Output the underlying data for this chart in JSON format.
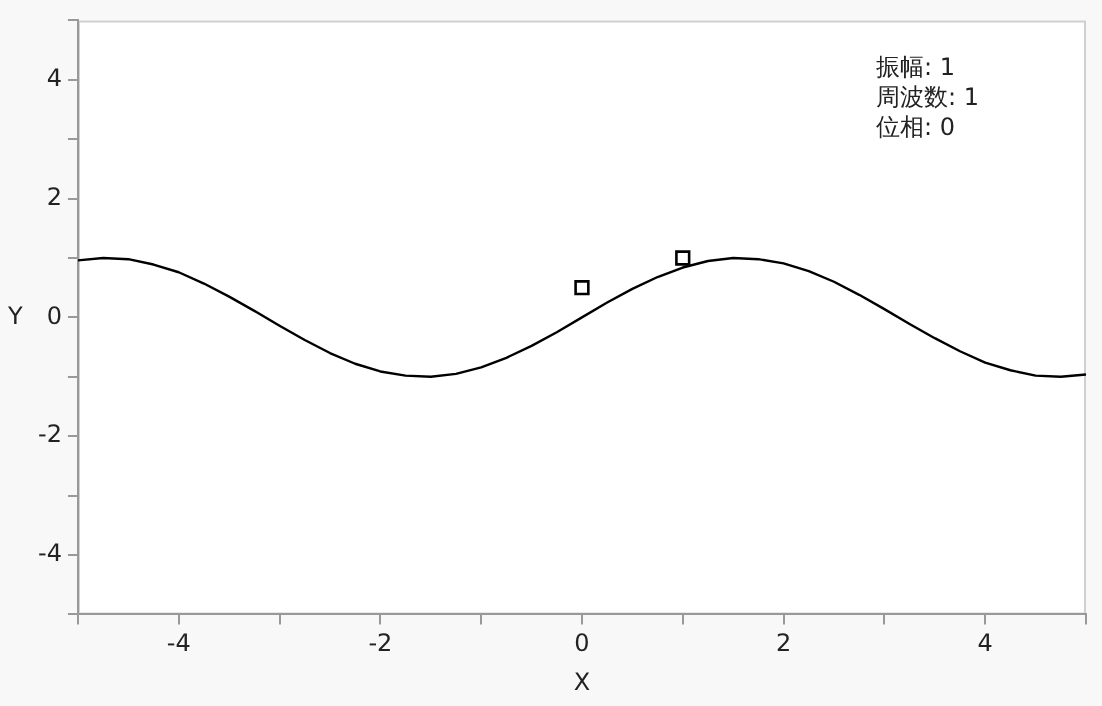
{
  "chart_data": {
    "type": "line",
    "xlabel": "X",
    "ylabel": "Y",
    "xlim": [
      -5,
      5
    ],
    "ylim": [
      -5,
      5
    ],
    "xticks": [
      {
        "value": -5,
        "label": null
      },
      -4,
      {
        "value": -3,
        "label": null
      },
      -2,
      {
        "value": -1,
        "label": null
      },
      0,
      {
        "value": 1,
        "label": null
      },
      2,
      {
        "value": 3,
        "label": null
      },
      4,
      {
        "value": 5,
        "label": null
      }
    ],
    "yticks": [
      {
        "value": -5,
        "label": null
      },
      -4,
      {
        "value": -3,
        "label": null
      },
      -2,
      {
        "value": -1,
        "label": null
      },
      0,
      {
        "value": 1,
        "label": null
      },
      2,
      {
        "value": 3,
        "label": null
      },
      4,
      {
        "value": 5,
        "label": null
      }
    ],
    "grid": false,
    "legend": false,
    "annotations": [
      "振幅: 1",
      "周波数: 1",
      "位相: 0"
    ],
    "series": [
      {
        "type": "line",
        "color": "#000000",
        "marker": "none",
        "x": [
          -5,
          -4.75,
          -4.5,
          -4.25,
          -4,
          -3.75,
          -3.5,
          -3.25,
          -3,
          -2.75,
          -2.5,
          -2.25,
          -2,
          -1.75,
          -1.5,
          -1.25,
          -1,
          -0.75,
          -0.5,
          -0.25,
          0,
          0.25,
          0.5,
          0.75,
          1,
          1.25,
          1.5,
          1.75,
          2,
          2.25,
          2.5,
          2.75,
          3,
          3.25,
          3.5,
          3.75,
          4,
          4.25,
          4.5,
          4.75,
          5
        ],
        "values": [
          0.96,
          1.0,
          0.98,
          0.89,
          0.76,
          0.57,
          0.35,
          0.11,
          -0.14,
          -0.38,
          -0.6,
          -0.78,
          -0.91,
          -0.98,
          -1.0,
          -0.95,
          -0.84,
          -0.68,
          -0.48,
          -0.25,
          0,
          0.25,
          0.48,
          0.68,
          0.84,
          0.95,
          1.0,
          0.98,
          0.91,
          0.78,
          0.6,
          0.38,
          0.14,
          -0.11,
          -0.35,
          -0.57,
          -0.76,
          -0.89,
          -0.98,
          -1.0,
          -0.96
        ]
      },
      {
        "type": "scatter",
        "color": "#000000",
        "marker": "square",
        "x": [
          0,
          1
        ],
        "values": [
          0.5,
          1
        ]
      }
    ]
  }
}
